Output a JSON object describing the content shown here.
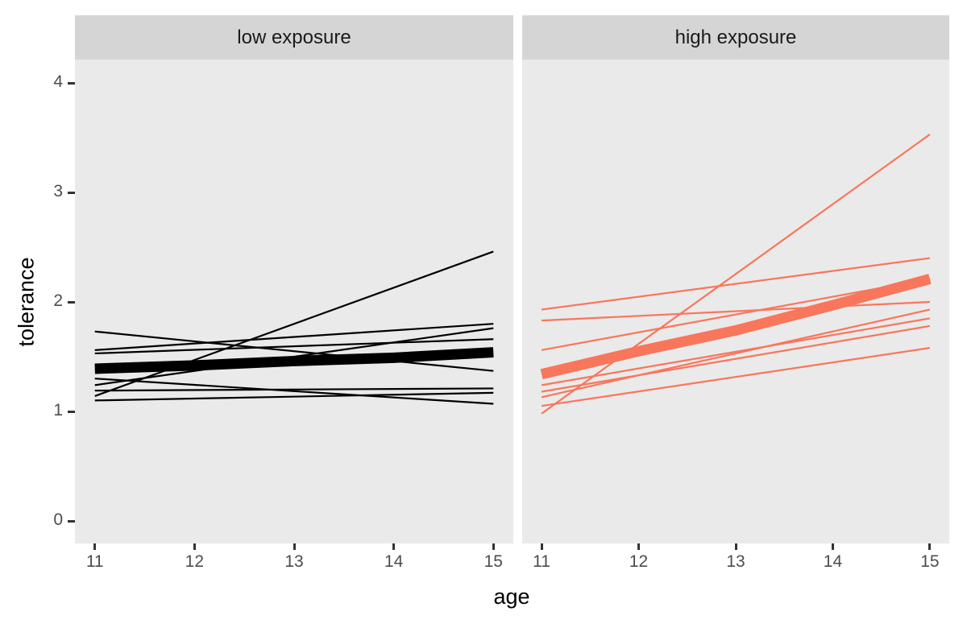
{
  "chart_data": {
    "type": "line",
    "title": "",
    "xlabel": "age",
    "ylabel": "tolerance",
    "x_ticks": [
      11,
      12,
      13,
      14,
      15
    ],
    "y_ticks": [
      0,
      1,
      2,
      3,
      4
    ],
    "xlim": [
      10.8,
      15.2
    ],
    "ylim": [
      -0.2,
      4.2
    ],
    "grid": false,
    "legend": "none",
    "style": {
      "panel_bg": "#EAEAEA",
      "strip_bg": "#D5D5D5",
      "tick_mark_color": "#333333",
      "tick_label_color": "#4D4D4D",
      "thin_line_width": 2.2,
      "mean_line_width": 13
    },
    "facets": [
      {
        "label": "low exposure",
        "line_color": "#000000",
        "trajectory_x": [
          11,
          15
        ],
        "individual_trajectories": [
          [
            1.73,
            1.37
          ],
          [
            1.56,
            1.8
          ],
          [
            1.53,
            1.66
          ],
          [
            1.3,
            1.07
          ],
          [
            1.24,
            1.76
          ],
          [
            1.19,
            1.21
          ],
          [
            1.14,
            2.46
          ],
          [
            1.1,
            1.17
          ]
        ],
        "mean_trajectory": {
          "x": [
            11,
            12,
            13,
            14,
            15
          ],
          "values": [
            1.39,
            1.42,
            1.46,
            1.49,
            1.54
          ]
        }
      },
      {
        "label": "high exposure",
        "line_color": "#F8765C",
        "trajectory_x": [
          11,
          15
        ],
        "individual_trajectories": [
          [
            0.98,
            3.53
          ],
          [
            1.93,
            2.4
          ],
          [
            1.83,
            2.0
          ],
          [
            1.56,
            2.21
          ],
          [
            1.24,
            1.85
          ],
          [
            1.18,
            1.78
          ],
          [
            1.13,
            1.93
          ],
          [
            1.05,
            1.58
          ]
        ],
        "mean_trajectory": {
          "x": [
            11,
            12,
            13,
            14,
            15
          ],
          "values": [
            1.34,
            1.55,
            1.74,
            1.97,
            2.21
          ]
        }
      }
    ]
  }
}
